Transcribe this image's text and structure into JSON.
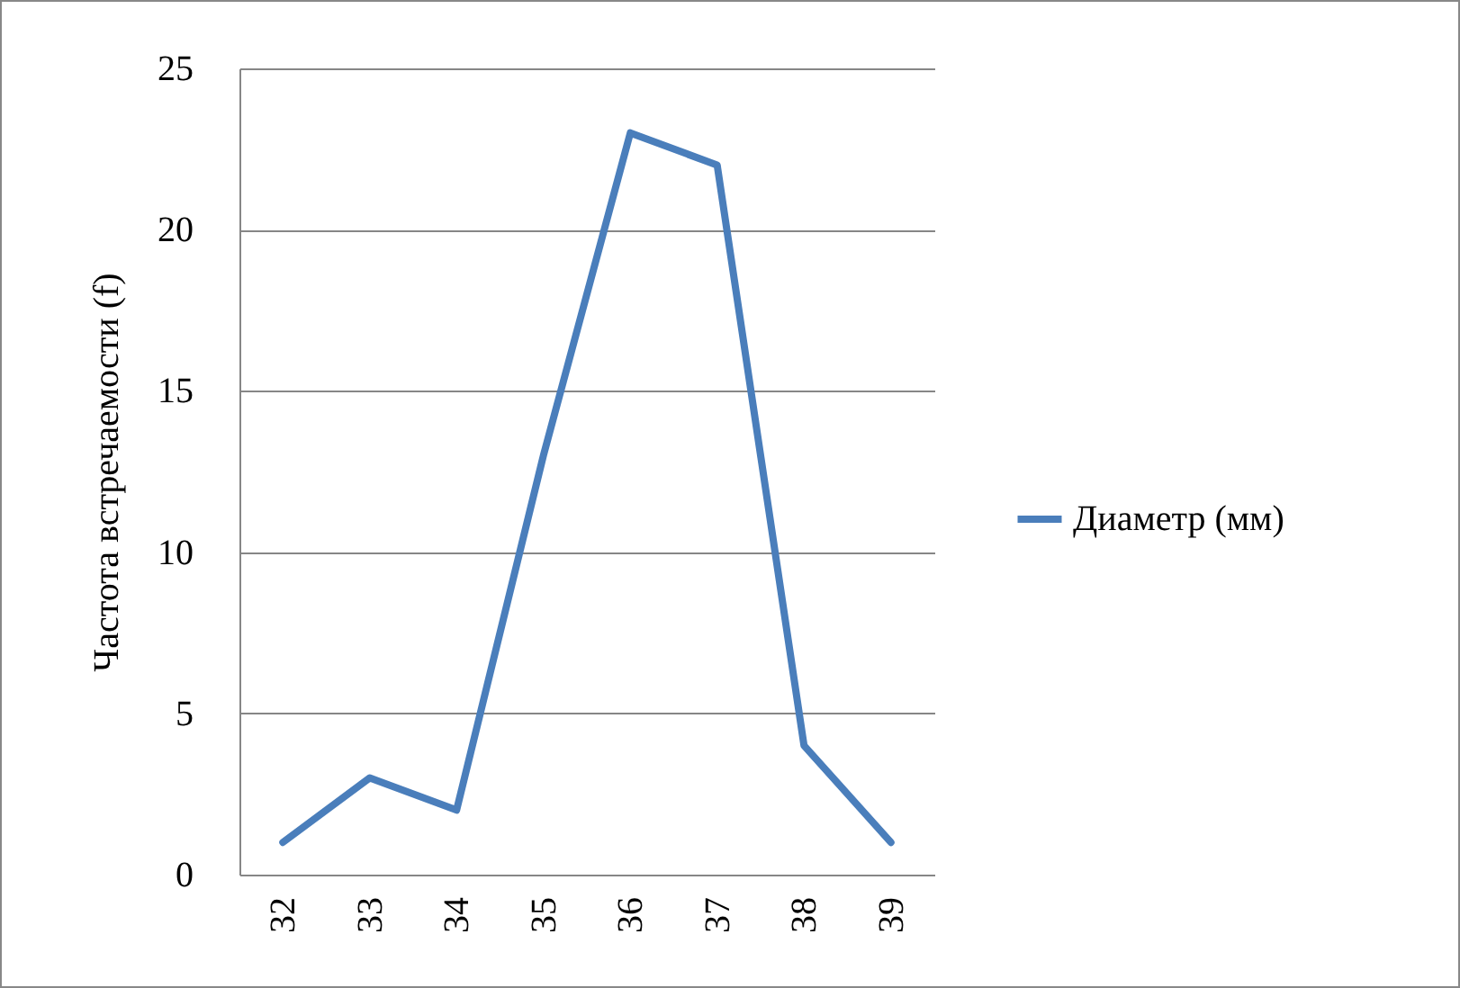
{
  "chart_data": {
    "type": "line",
    "ylabel": "Частота встречаемости (f)",
    "categories": [
      "32",
      "33",
      "34",
      "35",
      "36",
      "37",
      "38",
      "39"
    ],
    "series": [
      {
        "name": "Диаметр (мм)",
        "color": "#4a7ebb",
        "values": [
          1,
          3,
          2,
          13,
          23,
          22,
          4,
          1
        ]
      }
    ],
    "ylim": [
      0,
      25
    ],
    "yticks": [
      0,
      5,
      10,
      15,
      20,
      25
    ],
    "grid": "y",
    "legend": "right",
    "marker": "none",
    "line_style": "solid"
  }
}
